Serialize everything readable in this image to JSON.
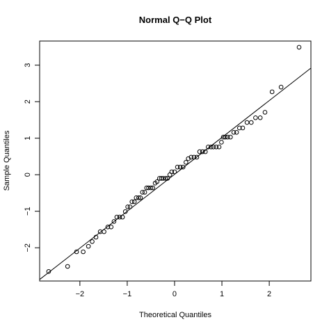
{
  "chart_data": {
    "type": "scatter",
    "title": "Normal Q−Q Plot",
    "x_label": "Theoretical Quantiles",
    "y_label": "Sample Quantiles",
    "xlim": [
      -2.85,
      2.88
    ],
    "ylim": [
      -2.91,
      3.66
    ],
    "xticks": [
      {
        "value": -2,
        "label": "−2"
      },
      {
        "value": -1,
        "label": "−1"
      },
      0,
      1,
      2
    ],
    "yticks": [
      {
        "value": -2,
        "label": "−2"
      },
      {
        "value": -1,
        "label": "−1"
      },
      0,
      1,
      2,
      3
    ],
    "reference_line": {
      "intercept": 0.01,
      "slope": 1.01
    },
    "series": [
      {
        "color": "#000000",
        "x": [
          -2.66,
          -2.26,
          -2.07,
          -1.93,
          -1.82,
          -1.74,
          -1.66,
          -1.57,
          -1.49,
          -1.41,
          -1.34,
          -1.28,
          -1.22,
          -1.16,
          -1.1,
          -1.04,
          -0.99,
          -0.94,
          -0.9,
          -0.85,
          -0.81,
          -0.76,
          -0.72,
          -0.68,
          -0.63,
          -0.59,
          -0.55,
          -0.5,
          -0.46,
          -0.41,
          -0.37,
          -0.32,
          -0.28,
          -0.24,
          -0.19,
          -0.15,
          -0.1,
          -0.06,
          0,
          0.06,
          0.12,
          0.18,
          0.24,
          0.29,
          0.35,
          0.41,
          0.47,
          0.53,
          0.59,
          0.65,
          0.71,
          0.77,
          0.82,
          0.88,
          0.94,
          0.99,
          1.03,
          1.07,
          1.12,
          1.18,
          1.25,
          1.31,
          1.37,
          1.44,
          1.53,
          1.62,
          1.71,
          1.81,
          1.91,
          2.06,
          2.25,
          2.63
        ],
        "values": [
          -2.65,
          -2.51,
          -2.11,
          -2.11,
          -1.96,
          -1.83,
          -1.71,
          -1.56,
          -1.56,
          -1.43,
          -1.43,
          -1.28,
          -1.16,
          -1.16,
          -1.16,
          -1.01,
          -0.88,
          -0.88,
          -0.74,
          -0.74,
          -0.63,
          -0.63,
          -0.63,
          -0.48,
          -0.48,
          -0.36,
          -0.36,
          -0.36,
          -0.36,
          -0.23,
          -0.19,
          -0.1,
          -0.1,
          -0.1,
          -0.1,
          -0.1,
          0.0,
          0.08,
          0.08,
          0.21,
          0.21,
          0.21,
          0.34,
          0.44,
          0.48,
          0.48,
          0.48,
          0.63,
          0.63,
          0.63,
          0.76,
          0.76,
          0.76,
          0.76,
          0.76,
          0.89,
          1.03,
          1.03,
          1.03,
          1.03,
          1.16,
          1.16,
          1.28,
          1.28,
          1.43,
          1.43,
          1.56,
          1.56,
          1.71,
          2.27,
          2.4,
          3.49
        ]
      }
    ]
  }
}
